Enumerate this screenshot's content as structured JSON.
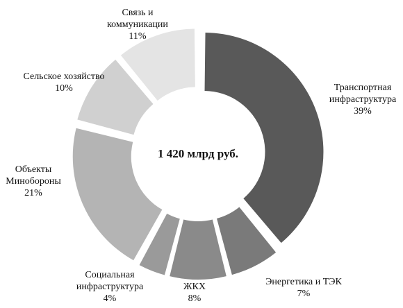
{
  "chart_data": {
    "type": "donut",
    "center_label": "1 420 млрд руб.",
    "categories": [
      "Транспортная\nинфраструктура",
      "Энергетика и ТЭК",
      "ЖКХ",
      "Социальная\nинфраструктура",
      "Объекты\nМинобороны",
      "Сельское хозяйство",
      "Связь и\nкоммуникации"
    ],
    "values": [
      39,
      7,
      8,
      4,
      21,
      10,
      11
    ],
    "value_labels": [
      "39%",
      "7%",
      "8%",
      "4%",
      "21%",
      "10%",
      "11%"
    ],
    "colors": [
      "#595959",
      "#7a7a7a",
      "#8a8a8a",
      "#9a9a9a",
      "#b4b4b4",
      "#d0d0d0",
      "#e4e4e4"
    ]
  }
}
